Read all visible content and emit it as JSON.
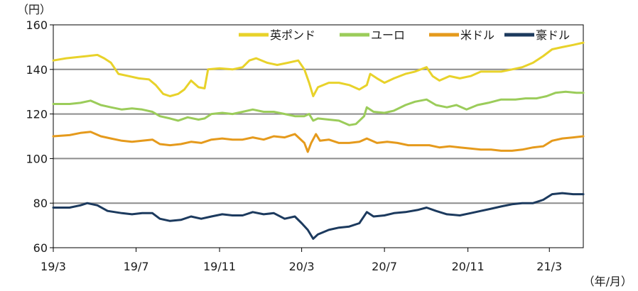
{
  "chart_data": {
    "type": "line",
    "y_unit": "（円）",
    "x_unit": "（年/月）",
    "ylim": [
      60,
      160
    ],
    "yticks": [
      60,
      80,
      100,
      120,
      140,
      160
    ],
    "xlim": [
      "2019-03-01",
      "2021-04-20"
    ],
    "xticks": [
      {
        "date": "2019-03-01",
        "label": "19/3"
      },
      {
        "date": "2019-07-01",
        "label": "19/7"
      },
      {
        "date": "2019-11-01",
        "label": "19/11"
      },
      {
        "date": "2020-03-01",
        "label": "20/3"
      },
      {
        "date": "2020-07-01",
        "label": "20/7"
      },
      {
        "date": "2020-11-01",
        "label": "20/11"
      },
      {
        "date": "2021-03-01",
        "label": "21/3"
      }
    ],
    "grid": true,
    "legend_position": "top-right",
    "series": [
      {
        "name": "英ポンド",
        "color": "#e8d22a",
        "points": [
          [
            "2019-03-01",
            144
          ],
          [
            "2019-03-20",
            145
          ],
          [
            "2019-04-05",
            145.5
          ],
          [
            "2019-04-20",
            146
          ],
          [
            "2019-05-05",
            146.5
          ],
          [
            "2019-05-15",
            145
          ],
          [
            "2019-05-25",
            143
          ],
          [
            "2019-06-05",
            138
          ],
          [
            "2019-06-20",
            137
          ],
          [
            "2019-07-05",
            136
          ],
          [
            "2019-07-20",
            135.5
          ],
          [
            "2019-07-30",
            133
          ],
          [
            "2019-08-10",
            129
          ],
          [
            "2019-08-20",
            128
          ],
          [
            "2019-09-01",
            129
          ],
          [
            "2019-09-10",
            131
          ],
          [
            "2019-09-20",
            135
          ],
          [
            "2019-10-01",
            132
          ],
          [
            "2019-10-10",
            131.5
          ],
          [
            "2019-10-15",
            140
          ],
          [
            "2019-11-01",
            140.5
          ],
          [
            "2019-11-20",
            140
          ],
          [
            "2019-12-05",
            141
          ],
          [
            "2019-12-15",
            144
          ],
          [
            "2019-12-25",
            145
          ],
          [
            "2020-01-10",
            143
          ],
          [
            "2020-01-25",
            142
          ],
          [
            "2020-02-10",
            143
          ],
          [
            "2020-02-25",
            144
          ],
          [
            "2020-03-05",
            140
          ],
          [
            "2020-03-12",
            134
          ],
          [
            "2020-03-18",
            128
          ],
          [
            "2020-03-25",
            132
          ],
          [
            "2020-04-10",
            134
          ],
          [
            "2020-04-25",
            134
          ],
          [
            "2020-05-10",
            133
          ],
          [
            "2020-05-25",
            131
          ],
          [
            "2020-06-05",
            133
          ],
          [
            "2020-06-10",
            138
          ],
          [
            "2020-06-20",
            136
          ],
          [
            "2020-07-01",
            134
          ],
          [
            "2020-07-15",
            136
          ],
          [
            "2020-08-01",
            138
          ],
          [
            "2020-08-15",
            139
          ],
          [
            "2020-09-01",
            141
          ],
          [
            "2020-09-10",
            137
          ],
          [
            "2020-09-20",
            135
          ],
          [
            "2020-10-05",
            137
          ],
          [
            "2020-10-20",
            136
          ],
          [
            "2020-11-05",
            137
          ],
          [
            "2020-11-20",
            139
          ],
          [
            "2020-12-05",
            139
          ],
          [
            "2020-12-20",
            139
          ],
          [
            "2021-01-05",
            140
          ],
          [
            "2021-01-20",
            141
          ],
          [
            "2021-02-05",
            143
          ],
          [
            "2021-02-20",
            146
          ],
          [
            "2021-03-05",
            149
          ],
          [
            "2021-03-20",
            150
          ],
          [
            "2021-04-05",
            151
          ],
          [
            "2021-04-20",
            152
          ]
        ]
      },
      {
        "name": "ユーロ",
        "color": "#9bcc5a",
        "points": [
          [
            "2019-03-01",
            124.5
          ],
          [
            "2019-03-25",
            124.5
          ],
          [
            "2019-04-10",
            125
          ],
          [
            "2019-04-25",
            126
          ],
          [
            "2019-05-10",
            124
          ],
          [
            "2019-05-25",
            123
          ],
          [
            "2019-06-10",
            122
          ],
          [
            "2019-06-25",
            122.5
          ],
          [
            "2019-07-10",
            122
          ],
          [
            "2019-07-25",
            121
          ],
          [
            "2019-08-05",
            119
          ],
          [
            "2019-08-20",
            118
          ],
          [
            "2019-09-01",
            117
          ],
          [
            "2019-09-15",
            118.5
          ],
          [
            "2019-10-01",
            117.5
          ],
          [
            "2019-10-10",
            118
          ],
          [
            "2019-10-20",
            120
          ],
          [
            "2019-11-05",
            120.5
          ],
          [
            "2019-11-20",
            120
          ],
          [
            "2019-12-05",
            121
          ],
          [
            "2019-12-20",
            122
          ],
          [
            "2020-01-05",
            121
          ],
          [
            "2020-01-20",
            121
          ],
          [
            "2020-02-05",
            120
          ],
          [
            "2020-02-20",
            119
          ],
          [
            "2020-03-05",
            119
          ],
          [
            "2020-03-12",
            120
          ],
          [
            "2020-03-18",
            117
          ],
          [
            "2020-03-25",
            118
          ],
          [
            "2020-04-10",
            117.5
          ],
          [
            "2020-04-25",
            117
          ],
          [
            "2020-05-10",
            115
          ],
          [
            "2020-05-20",
            115.5
          ],
          [
            "2020-06-01",
            119
          ],
          [
            "2020-06-05",
            123
          ],
          [
            "2020-06-15",
            121
          ],
          [
            "2020-07-01",
            120.5
          ],
          [
            "2020-07-15",
            121.5
          ],
          [
            "2020-08-01",
            124
          ],
          [
            "2020-08-15",
            125.5
          ],
          [
            "2020-09-01",
            126.5
          ],
          [
            "2020-09-15",
            124
          ],
          [
            "2020-10-01",
            123
          ],
          [
            "2020-10-15",
            124
          ],
          [
            "2020-10-30",
            122
          ],
          [
            "2020-11-15",
            124
          ],
          [
            "2020-12-01",
            125
          ],
          [
            "2020-12-20",
            126.5
          ],
          [
            "2021-01-10",
            126.5
          ],
          [
            "2021-01-25",
            127
          ],
          [
            "2021-02-10",
            127
          ],
          [
            "2021-02-25",
            128
          ],
          [
            "2021-03-10",
            129.5
          ],
          [
            "2021-03-25",
            130
          ],
          [
            "2021-04-10",
            129.5
          ],
          [
            "2021-04-20",
            129.5
          ]
        ]
      },
      {
        "name": "米ドル",
        "color": "#e59a1c",
        "points": [
          [
            "2019-03-01",
            110
          ],
          [
            "2019-03-25",
            110.5
          ],
          [
            "2019-04-10",
            111.5
          ],
          [
            "2019-04-25",
            112
          ],
          [
            "2019-05-10",
            110
          ],
          [
            "2019-05-25",
            109
          ],
          [
            "2019-06-10",
            108
          ],
          [
            "2019-06-25",
            107.5
          ],
          [
            "2019-07-10",
            108
          ],
          [
            "2019-07-25",
            108.5
          ],
          [
            "2019-08-05",
            106.5
          ],
          [
            "2019-08-20",
            106
          ],
          [
            "2019-09-05",
            106.5
          ],
          [
            "2019-09-20",
            107.5
          ],
          [
            "2019-10-05",
            107
          ],
          [
            "2019-10-20",
            108.5
          ],
          [
            "2019-11-05",
            109
          ],
          [
            "2019-11-20",
            108.5
          ],
          [
            "2019-12-05",
            108.5
          ],
          [
            "2019-12-20",
            109.5
          ],
          [
            "2020-01-05",
            108.5
          ],
          [
            "2020-01-20",
            110
          ],
          [
            "2020-02-05",
            109.5
          ],
          [
            "2020-02-20",
            111
          ],
          [
            "2020-03-05",
            107
          ],
          [
            "2020-03-10",
            103
          ],
          [
            "2020-03-15",
            107
          ],
          [
            "2020-03-22",
            111
          ],
          [
            "2020-03-28",
            108
          ],
          [
            "2020-04-10",
            108.5
          ],
          [
            "2020-04-25",
            107
          ],
          [
            "2020-05-10",
            107
          ],
          [
            "2020-05-25",
            107.5
          ],
          [
            "2020-06-05",
            109
          ],
          [
            "2020-06-20",
            107
          ],
          [
            "2020-07-05",
            107.5
          ],
          [
            "2020-07-20",
            107
          ],
          [
            "2020-08-05",
            106
          ],
          [
            "2020-08-20",
            106
          ],
          [
            "2020-09-05",
            106
          ],
          [
            "2020-09-20",
            105
          ],
          [
            "2020-10-05",
            105.5
          ],
          [
            "2020-10-20",
            105
          ],
          [
            "2020-11-05",
            104.5
          ],
          [
            "2020-11-20",
            104
          ],
          [
            "2020-12-05",
            104
          ],
          [
            "2020-12-20",
            103.5
          ],
          [
            "2021-01-05",
            103.5
          ],
          [
            "2021-01-20",
            104
          ],
          [
            "2021-02-05",
            105
          ],
          [
            "2021-02-20",
            105.5
          ],
          [
            "2021-03-05",
            108
          ],
          [
            "2021-03-20",
            109
          ],
          [
            "2021-04-05",
            109.5
          ],
          [
            "2021-04-20",
            110
          ]
        ]
      },
      {
        "name": "豪ドル",
        "color": "#1c3a5e",
        "points": [
          [
            "2019-03-01",
            78
          ],
          [
            "2019-03-25",
            78
          ],
          [
            "2019-04-10",
            79
          ],
          [
            "2019-04-20",
            80
          ],
          [
            "2019-05-05",
            79
          ],
          [
            "2019-05-20",
            76.5
          ],
          [
            "2019-06-10",
            75.5
          ],
          [
            "2019-06-25",
            75
          ],
          [
            "2019-07-10",
            75.5
          ],
          [
            "2019-07-25",
            75.5
          ],
          [
            "2019-08-05",
            73
          ],
          [
            "2019-08-20",
            72
          ],
          [
            "2019-09-05",
            72.5
          ],
          [
            "2019-09-20",
            74
          ],
          [
            "2019-10-05",
            73
          ],
          [
            "2019-10-20",
            74
          ],
          [
            "2019-11-05",
            75
          ],
          [
            "2019-11-20",
            74.5
          ],
          [
            "2019-12-05",
            74.5
          ],
          [
            "2019-12-20",
            76
          ],
          [
            "2020-01-05",
            75
          ],
          [
            "2020-01-20",
            75.5
          ],
          [
            "2020-02-05",
            73
          ],
          [
            "2020-02-20",
            74
          ],
          [
            "2020-03-01",
            71
          ],
          [
            "2020-03-10",
            68
          ],
          [
            "2020-03-18",
            64
          ],
          [
            "2020-03-25",
            66
          ],
          [
            "2020-04-10",
            68
          ],
          [
            "2020-04-25",
            69
          ],
          [
            "2020-05-10",
            69.5
          ],
          [
            "2020-05-25",
            71
          ],
          [
            "2020-06-05",
            76
          ],
          [
            "2020-06-15",
            74
          ],
          [
            "2020-07-01",
            74.5
          ],
          [
            "2020-07-15",
            75.5
          ],
          [
            "2020-08-01",
            76
          ],
          [
            "2020-08-20",
            77
          ],
          [
            "2020-09-01",
            78
          ],
          [
            "2020-09-15",
            76.5
          ],
          [
            "2020-10-01",
            75
          ],
          [
            "2020-10-20",
            74.5
          ],
          [
            "2020-11-05",
            75.5
          ],
          [
            "2020-11-20",
            76.5
          ],
          [
            "2020-12-05",
            77.5
          ],
          [
            "2020-12-20",
            78.5
          ],
          [
            "2021-01-05",
            79.5
          ],
          [
            "2021-01-20",
            80
          ],
          [
            "2021-02-05",
            80
          ],
          [
            "2021-02-20",
            81.5
          ],
          [
            "2021-03-05",
            84
          ],
          [
            "2021-03-20",
            84.5
          ],
          [
            "2021-04-05",
            84
          ],
          [
            "2021-04-20",
            84
          ]
        ]
      }
    ]
  }
}
